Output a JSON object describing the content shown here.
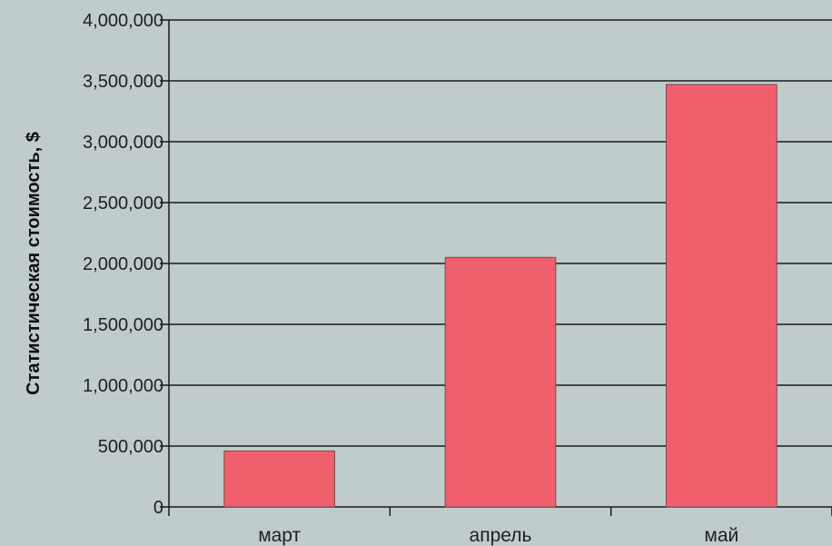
{
  "colors": {
    "background": "#c0cbcc",
    "bar_fill": "#f0606c",
    "bar_stroke": "#7a4a4e",
    "grid": "#1a1a1a",
    "text": "#1f1f1f"
  },
  "chart_data": {
    "type": "bar",
    "categories": [
      "март",
      "апрель",
      "май"
    ],
    "values": [
      460000,
      2050000,
      3470000
    ],
    "title": "",
    "xlabel": "",
    "ylabel": "Статистическая стоимость, $",
    "ylim": [
      0,
      4000000
    ],
    "yticks": [
      0,
      500000,
      1000000,
      1500000,
      2000000,
      2500000,
      3000000,
      3500000,
      4000000
    ],
    "ytick_labels": [
      "0",
      "500,000",
      "1,000,000",
      "1,500,000",
      "2,000,000",
      "2,500,000",
      "3,000,000",
      "3,500,000",
      "4,000,000"
    ],
    "grid": true,
    "legend": "none"
  }
}
